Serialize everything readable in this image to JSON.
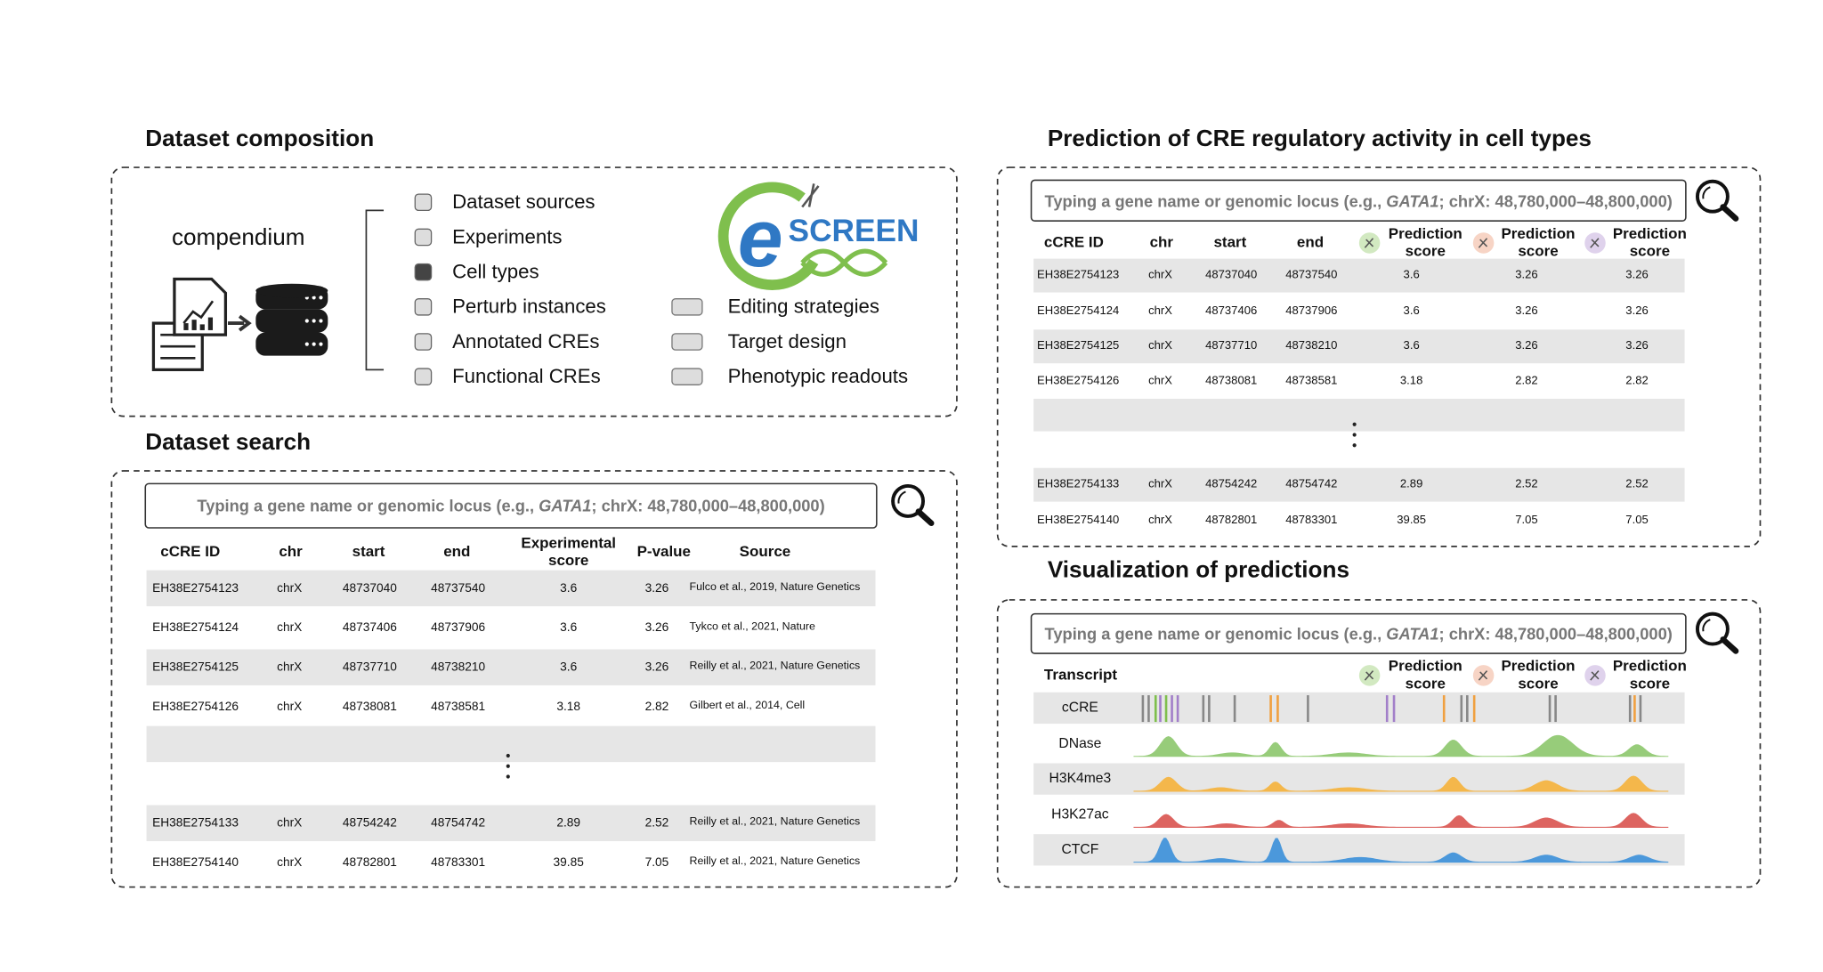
{
  "composition": {
    "title": "Dataset composition",
    "source_label": "compendium",
    "items": [
      "Dataset sources",
      "Experiments",
      "Cell types",
      "Perturb instances",
      "Annotated CREs",
      "Functional CREs"
    ],
    "tools": [
      "Editing strategies",
      "Target design",
      "Phenotypic readouts"
    ],
    "logo": {
      "mark": "e",
      "text": "SCREEN"
    }
  },
  "search": {
    "title": "Dataset search",
    "placeholder": {
      "before": "Typing a gene name or genomic locus (e.g., ",
      "gene": "GATA1",
      "after": "; chrX: 48,780,000–48,800,000)"
    },
    "headers": [
      "cCRE ID",
      "chr",
      "start",
      "end",
      "Experimental score",
      "P-value",
      "Source"
    ],
    "rows": [
      [
        "EH38E2754123",
        "chrX",
        48737040,
        48737540,
        3.6,
        3.26,
        "Fulco et al., 2019, Nature Genetics"
      ],
      [
        "EH38E2754124",
        "chrX",
        48737406,
        48737906,
        3.6,
        3.26,
        "Tykco et al., 2021, Nature"
      ],
      [
        "EH38E2754125",
        "chrX",
        48737710,
        48738210,
        3.6,
        3.26,
        "Reilly et al., 2021, Nature Genetics"
      ],
      [
        "EH38E2754126",
        "chrX",
        48738081,
        48738581,
        3.18,
        2.82,
        "Gilbert et al., 2014, Cell"
      ],
      [
        "EH38E2754133",
        "chrX",
        48754242,
        48754742,
        2.89,
        2.52,
        "Reilly et al., 2021, Nature Genetics"
      ],
      [
        "EH38E2754140",
        "chrX",
        48782801,
        48783301,
        39.85,
        7.05,
        "Reilly et al., 2021, Nature Genetics"
      ]
    ]
  },
  "prediction": {
    "title": "Prediction of CRE regulatory activity in cell types",
    "placeholder": {
      "before": "Typing a gene name or genomic locus (e.g., ",
      "gene": "GATA1",
      "after": "; chrX: 48,780,000–48,800,000)"
    },
    "headers": [
      "cCRE ID",
      "chr",
      "start",
      "end",
      "Prediction score",
      "Prediction score",
      "Prediction score"
    ],
    "rows": [
      [
        "EH38E2754123",
        "chrX",
        48737040,
        48737540,
        3.6,
        3.26,
        3.26
      ],
      [
        "EH38E2754124",
        "chrX",
        48737406,
        48737906,
        3.6,
        3.26,
        3.26
      ],
      [
        "EH38E2754125",
        "chrX",
        48737710,
        48738210,
        3.6,
        3.26,
        3.26
      ],
      [
        "EH38E2754126",
        "chrX",
        48738081,
        48738581,
        3.18,
        2.82,
        2.82
      ],
      [
        "EH38E2754133",
        "chrX",
        48754242,
        48754742,
        2.89,
        2.52,
        2.52
      ],
      [
        "EH38E2754140",
        "chrX",
        48782801,
        48783301,
        39.85,
        7.05,
        7.05
      ]
    ]
  },
  "visualization": {
    "title": "Visualization of predictions",
    "placeholder": {
      "before": "Typing a gene name or genomic locus (e.g., ",
      "gene": "GATA1",
      "after": "; chrX: 48,780,000–48,800,000)"
    },
    "headers": [
      "Transcript",
      "Prediction score",
      "Prediction score",
      "Prediction score"
    ],
    "tracks": [
      "cCRE",
      "DNase",
      "H3K4me3",
      "H3K27ac",
      "CTCF"
    ]
  }
}
